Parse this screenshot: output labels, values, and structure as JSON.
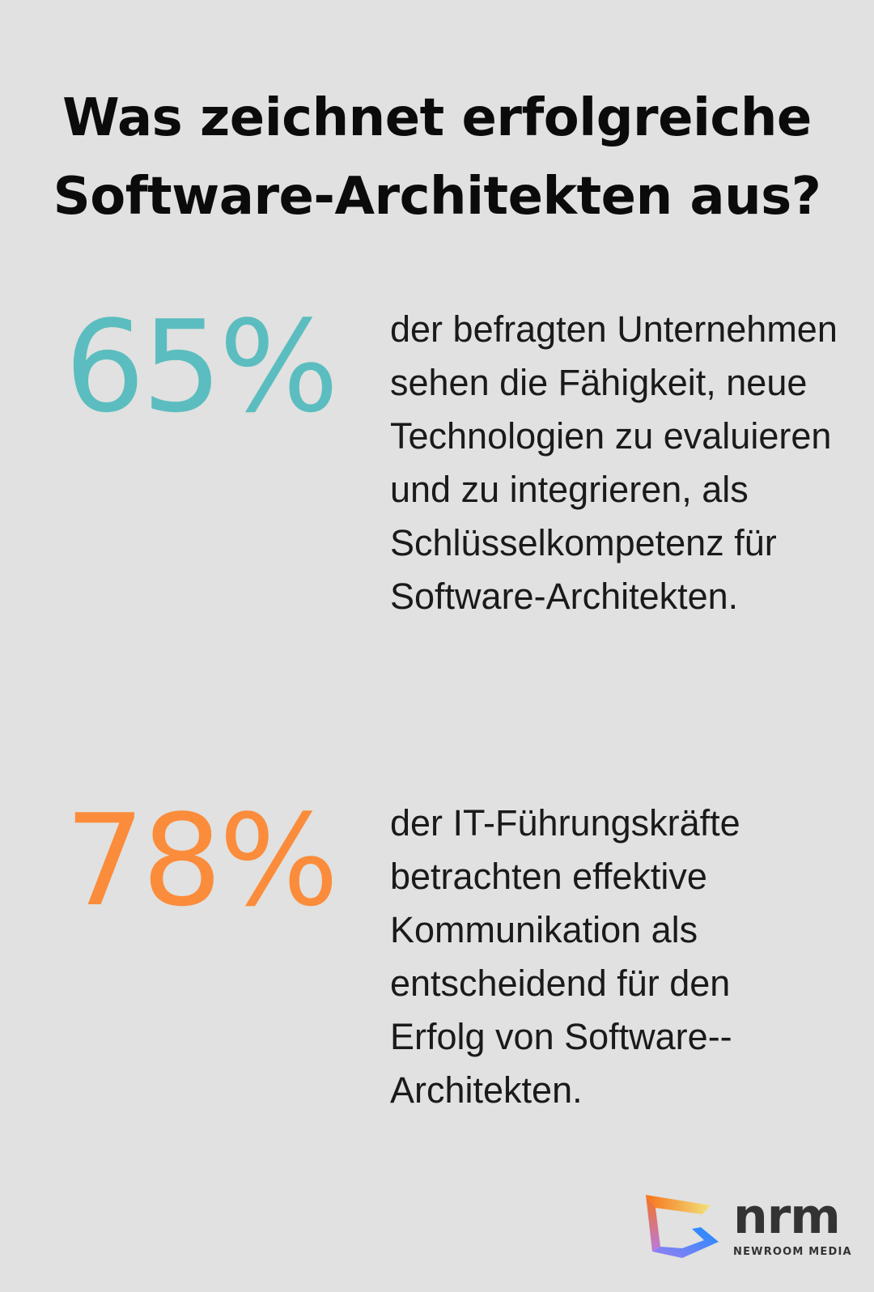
{
  "title": {
    "line1": "Was zeichnet erfolgreiche",
    "line2": "Software-Architekten aus?"
  },
  "stats": [
    {
      "value": "65%",
      "color": "#5bbdbf",
      "text": "der befragten Unternehmen sehen die Fähigkeit, neue Technologien zu evaluieren und zu integrieren, als Schlüsselkompetenz für Software-Architekten."
    },
    {
      "value": "78%",
      "color": "#fb8c3b",
      "text": "der IT-Führungskräfte betrachten effektive Kommunikation als entscheidend für den Erfolg von Software--Architekten."
    }
  ],
  "logo": {
    "word": "nrm",
    "subtitle": "NEWROOM MEDIA"
  }
}
